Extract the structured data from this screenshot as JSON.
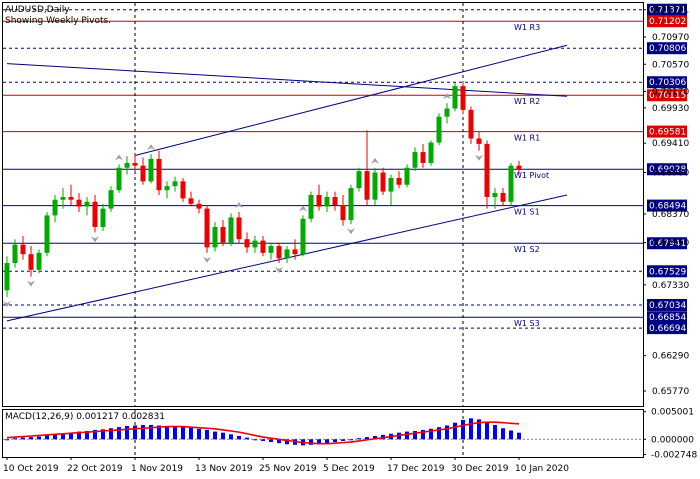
{
  "chart_data": {
    "type": "candlestick",
    "title": "AUDUSD,Daily",
    "subtitle": "Showing Weekly Pivots.",
    "ylim": [
      0.6555,
      0.7147
    ],
    "price_ticks": [
      "0.71371",
      "0.70970",
      "0.70570",
      "0.70170",
      "0.69930",
      "0.69410",
      "0.68980",
      "0.68370",
      "0.67950",
      "0.67330",
      "0.66290",
      "0.65770"
    ],
    "pivots": [
      {
        "name": "W1 R3",
        "value": 0.71202,
        "color": "#cc0000",
        "badge": "0.71202"
      },
      {
        "name": "W1 R2",
        "value": 0.70115,
        "color": "#cc0000",
        "badge": "0.70115"
      },
      {
        "name": "W1 R1",
        "value": 0.69581,
        "color": "#cc0000",
        "badge": "0.69581"
      },
      {
        "name": "W1 Pivot",
        "value": 0.69028,
        "color": "#000080",
        "badge": "0.69028"
      },
      {
        "name": "W1 S1",
        "value": 0.68494,
        "color": "#000080",
        "badge": "0.68494"
      },
      {
        "name": "W1 S2",
        "value": 0.67941,
        "color": "#000080",
        "badge": "0.67941"
      },
      {
        "name": "W1 S3",
        "value": 0.66854,
        "color": "#000080",
        "badge": "0.66854"
      }
    ],
    "level_lines": [
      {
        "value": 0.71371,
        "badge": "0.71371"
      },
      {
        "value": 0.70806,
        "badge": "0.70806"
      },
      {
        "value": 0.70306,
        "badge": "0.70306"
      },
      {
        "value": 0.67529,
        "badge": "0.67529"
      },
      {
        "value": 0.67034,
        "badge": "0.67034"
      },
      {
        "value": 0.66694,
        "badge": "0.66694"
      }
    ],
    "channel_lines": [
      {
        "from": [
          0,
          0.668
        ],
        "to": [
          70,
          0.6865
        ]
      },
      {
        "from": [
          16,
          0.6923
        ],
        "to": [
          70,
          0.7085
        ]
      },
      {
        "from": [
          0,
          0.7058
        ],
        "to": [
          70,
          0.701
        ]
      }
    ],
    "x_labels": [
      {
        "index": 0,
        "label": "10 Oct 2019"
      },
      {
        "index": 8,
        "label": "22 Oct 2019"
      },
      {
        "index": 16,
        "label": "1 Nov 2019"
      },
      {
        "index": 24,
        "label": "13 Nov 2019"
      },
      {
        "index": 32,
        "label": "25 Nov 2019"
      },
      {
        "index": 40,
        "label": "5 Dec 2019"
      },
      {
        "index": 48,
        "label": "17 Dec 2019"
      },
      {
        "index": 56,
        "label": "30 Dec 2019"
      },
      {
        "index": 64,
        "label": "10 Jan 2020"
      }
    ],
    "vgrid_index": [
      16,
      57
    ],
    "candles": [
      [
        0.6725,
        0.6775,
        0.6715,
        0.6765
      ],
      [
        0.6765,
        0.68,
        0.6758,
        0.6792
      ],
      [
        0.6792,
        0.6805,
        0.677,
        0.6778
      ],
      [
        0.6778,
        0.679,
        0.6745,
        0.6755
      ],
      [
        0.6755,
        0.6785,
        0.675,
        0.678
      ],
      [
        0.678,
        0.684,
        0.6775,
        0.6835
      ],
      [
        0.6835,
        0.6865,
        0.6825,
        0.6858
      ],
      [
        0.6858,
        0.6875,
        0.6845,
        0.6862
      ],
      [
        0.6862,
        0.688,
        0.685,
        0.6858
      ],
      [
        0.6858,
        0.6868,
        0.684,
        0.6848
      ],
      [
        0.6848,
        0.6862,
        0.6835,
        0.6855
      ],
      [
        0.6855,
        0.6865,
        0.681,
        0.6818
      ],
      [
        0.6818,
        0.6852,
        0.6812,
        0.6845
      ],
      [
        0.6845,
        0.6878,
        0.684,
        0.6872
      ],
      [
        0.6872,
        0.691,
        0.6868,
        0.6905
      ],
      [
        0.6905,
        0.6922,
        0.6895,
        0.6912
      ],
      [
        0.6912,
        0.6925,
        0.69,
        0.6908
      ],
      [
        0.6908,
        0.692,
        0.688,
        0.6885
      ],
      [
        0.6885,
        0.6925,
        0.6882,
        0.6918
      ],
      [
        0.6918,
        0.693,
        0.6865,
        0.6872
      ],
      [
        0.6872,
        0.6885,
        0.686,
        0.6878
      ],
      [
        0.6878,
        0.6892,
        0.687,
        0.6885
      ],
      [
        0.6885,
        0.689,
        0.6855,
        0.686
      ],
      [
        0.686,
        0.687,
        0.6848,
        0.6852
      ],
      [
        0.6852,
        0.6858,
        0.6838,
        0.6845
      ],
      [
        0.6845,
        0.685,
        0.678,
        0.6788
      ],
      [
        0.6788,
        0.6825,
        0.6782,
        0.6818
      ],
      [
        0.6818,
        0.6828,
        0.679,
        0.6795
      ],
      [
        0.6795,
        0.6838,
        0.679,
        0.6832
      ],
      [
        0.6832,
        0.684,
        0.6795,
        0.68
      ],
      [
        0.68,
        0.681,
        0.678,
        0.6788
      ],
      [
        0.6788,
        0.6805,
        0.678,
        0.6798
      ],
      [
        0.6798,
        0.6805,
        0.6775,
        0.678
      ],
      [
        0.678,
        0.6795,
        0.677,
        0.679
      ],
      [
        0.679,
        0.6795,
        0.6765,
        0.6772
      ],
      [
        0.6772,
        0.679,
        0.6765,
        0.6785
      ],
      [
        0.6785,
        0.68,
        0.677,
        0.6778
      ],
      [
        0.6778,
        0.6835,
        0.6775,
        0.683
      ],
      [
        0.683,
        0.687,
        0.6825,
        0.6865
      ],
      [
        0.6865,
        0.688,
        0.6842,
        0.6848
      ],
      [
        0.6848,
        0.687,
        0.684,
        0.6862
      ],
      [
        0.6862,
        0.687,
        0.6842,
        0.685
      ],
      [
        0.685,
        0.6865,
        0.682,
        0.6828
      ],
      [
        0.6828,
        0.688,
        0.6822,
        0.6875
      ],
      [
        0.6875,
        0.6905,
        0.687,
        0.69
      ],
      [
        0.69,
        0.696,
        0.685,
        0.6858
      ],
      [
        0.6858,
        0.6905,
        0.685,
        0.6898
      ],
      [
        0.6898,
        0.6905,
        0.6865,
        0.687
      ],
      [
        0.687,
        0.6895,
        0.685,
        0.689
      ],
      [
        0.689,
        0.69,
        0.6875,
        0.688
      ],
      [
        0.688,
        0.691,
        0.6876,
        0.6905
      ],
      [
        0.6905,
        0.6935,
        0.69,
        0.6928
      ],
      [
        0.6928,
        0.694,
        0.6905,
        0.6912
      ],
      [
        0.6912,
        0.6945,
        0.6908,
        0.6942
      ],
      [
        0.6942,
        0.6985,
        0.6938,
        0.698
      ],
      [
        0.698,
        0.7,
        0.697,
        0.6992
      ],
      [
        0.6992,
        0.703,
        0.6988,
        0.7025
      ],
      [
        0.7025,
        0.7032,
        0.6985,
        0.699
      ],
      [
        0.699,
        0.6995,
        0.694,
        0.6948
      ],
      [
        0.6948,
        0.6958,
        0.693,
        0.694
      ],
      [
        0.694,
        0.6945,
        0.6845,
        0.6862
      ],
      [
        0.6862,
        0.6875,
        0.6845,
        0.6868
      ],
      [
        0.6868,
        0.6875,
        0.685,
        0.6855
      ],
      [
        0.6855,
        0.6912,
        0.685,
        0.6908
      ],
      [
        0.6908,
        0.6915,
        0.6895,
        0.6902
      ]
    ],
    "up_color": "#00aa00",
    "down_color": "#ee0000",
    "fractals_up": [
      14,
      18,
      29,
      37,
      46,
      55
    ],
    "fractals_down": [
      0,
      3,
      11,
      25,
      34,
      43,
      59
    ],
    "macd": {
      "label": "MACD(12,26,9) 0.001217 0.002831",
      "ylim": [
        -0.0032,
        0.0053
      ],
      "ticks": [
        {
          "value": 0.005001,
          "label": "0.005001"
        },
        {
          "value": 0.0,
          "label": "0.000000"
        },
        {
          "value": -0.002748,
          "label": "-0.002748"
        }
      ],
      "histogram": [
        0.0,
        0.0002,
        0.0003,
        0.0004,
        0.0005,
        0.0007,
        0.0008,
        0.001,
        0.0012,
        0.0014,
        0.0015,
        0.0017,
        0.0018,
        0.002,
        0.0022,
        0.0024,
        0.0025,
        0.0026,
        0.0026,
        0.0025,
        0.0024,
        0.0023,
        0.0022,
        0.0021,
        0.0019,
        0.0017,
        0.0014,
        0.0012,
        0.0009,
        0.0006,
        0.0003,
        0.0,
        -0.0003,
        -0.0005,
        -0.0007,
        -0.0009,
        -0.001,
        -0.0011,
        -0.001,
        -0.0009,
        -0.0007,
        -0.0005,
        -0.0003,
        -0.0001,
        0.0002,
        0.0004,
        0.0006,
        0.0008,
        0.001,
        0.0012,
        0.0014,
        0.0015,
        0.0017,
        0.0019,
        0.0022,
        0.0025,
        0.003,
        0.0035,
        0.0038,
        0.0036,
        0.0032,
        0.0026,
        0.002,
        0.0016,
        0.0012
      ],
      "signal": [
        0.0003,
        0.0004,
        0.0005,
        0.0006,
        0.0007,
        0.0008,
        0.0009,
        0.001,
        0.0011,
        0.0012,
        0.0013,
        0.0014,
        0.0015,
        0.0016,
        0.0017,
        0.0018,
        0.0019,
        0.002,
        0.0021,
        0.0022,
        0.0023,
        0.0023,
        0.0023,
        0.0022,
        0.0021,
        0.002,
        0.0019,
        0.0017,
        0.0015,
        0.0013,
        0.001,
        0.0007,
        0.0004,
        0.0002,
        0.0,
        -0.0002,
        -0.0004,
        -0.0006,
        -0.0007,
        -0.0008,
        -0.0008,
        -0.0007,
        -0.0006,
        -0.0005,
        -0.0003,
        -0.0001,
        0.0001,
        0.0003,
        0.0005,
        0.0007,
        0.0009,
        0.0011,
        0.0013,
        0.0015,
        0.0017,
        0.0019,
        0.0022,
        0.0025,
        0.0028,
        0.003,
        0.0031,
        0.0031,
        0.003,
        0.0029,
        0.0028
      ],
      "hist_color": "#0000ff",
      "signal_color": "#ee0000"
    }
  }
}
